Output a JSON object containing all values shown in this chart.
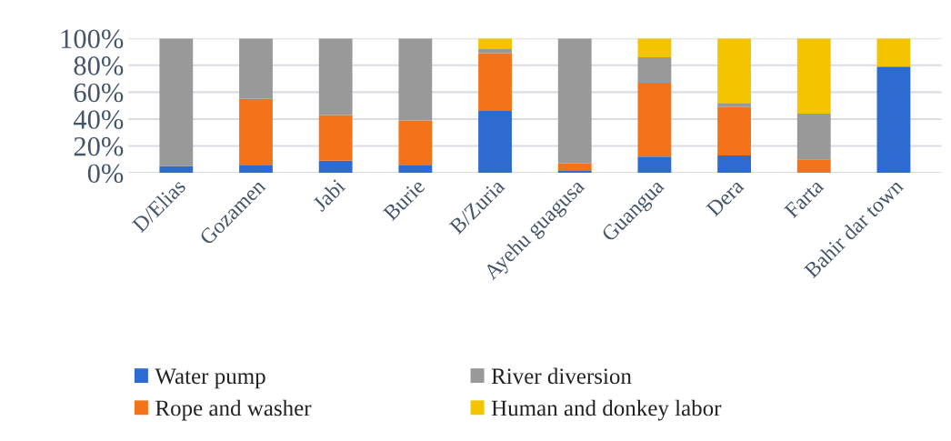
{
  "chart_data": {
    "type": "bar",
    "stacked": true,
    "categories": [
      "D/Elias",
      "Gozamen",
      "Jabi",
      "Burie",
      "B/Zuria",
      "Ayehu guagusa",
      "Guangua",
      "Dera",
      "Farta",
      "Bahir dar town"
    ],
    "series": [
      {
        "name": "Water pump",
        "color": "#2e6bd1",
        "values": [
          5,
          6,
          9,
          6,
          46,
          2,
          12,
          13,
          0,
          79
        ]
      },
      {
        "name": "Rope and washer",
        "color": "#f4731a",
        "values": [
          0,
          49,
          34,
          33,
          43,
          5,
          55,
          36,
          10,
          0
        ]
      },
      {
        "name": "River diversion",
        "color": "#999999",
        "values": [
          95,
          45,
          57,
          61,
          3,
          93,
          19,
          3,
          34,
          0
        ]
      },
      {
        "name": "Human and donkey labor",
        "color": "#f5c400",
        "values": [
          0,
          0,
          0,
          0,
          8,
          0,
          14,
          48,
          56,
          21
        ]
      }
    ],
    "ylim": [
      0,
      100
    ],
    "yticks": [
      {
        "value": 0,
        "label": "0%"
      },
      {
        "value": 20,
        "label": "20%"
      },
      {
        "value": 40,
        "label": "40%"
      },
      {
        "value": 60,
        "label": "60%"
      },
      {
        "value": 80,
        "label": "80%"
      },
      {
        "value": 100,
        "label": "100%"
      }
    ],
    "grid": "y",
    "legend": "bottom"
  }
}
